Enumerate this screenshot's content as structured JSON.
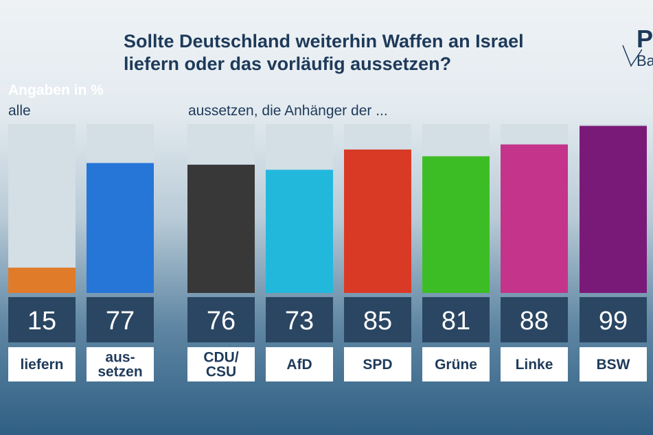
{
  "title_lines": [
    "Sollte Deutschland weiterhin Waffen an Israel",
    "liefern oder das vorläufig aussetzen?"
  ],
  "logo": {
    "top": "P",
    "bottom": "Ba"
  },
  "unit_label": "Angaben in %",
  "group_all_label": "alle",
  "group_parties_label": "aussetzen, die Anhänger der ...",
  "chart_data": {
    "type": "bar",
    "title": "Sollte Deutschland weiterhin Waffen an Israel liefern oder das vorläufig aussetzen?",
    "ylabel": "Angaben in %",
    "ylim": [
      0,
      100
    ],
    "grid": false,
    "bars": [
      {
        "group": "alle",
        "label": "liefern",
        "value": 15,
        "color": "#e07b2a"
      },
      {
        "group": "alle",
        "label": "aus-\nsetzen",
        "value": 77,
        "color": "#2676d8"
      },
      {
        "group": "aussetzen",
        "label": "CDU/\nCSU",
        "value": 76,
        "color": "#383838"
      },
      {
        "group": "aussetzen",
        "label": "AfD",
        "value": 73,
        "color": "#22b8dc"
      },
      {
        "group": "aussetzen",
        "label": "SPD",
        "value": 85,
        "color": "#d93a26"
      },
      {
        "group": "aussetzen",
        "label": "Grüne",
        "value": 81,
        "color": "#3dbd25"
      },
      {
        "group": "aussetzen",
        "label": "Linke",
        "value": 88,
        "color": "#c3348a"
      },
      {
        "group": "aussetzen",
        "label": "BSW",
        "value": 99,
        "color": "#7a1a78"
      }
    ]
  },
  "colors": {
    "track": "#d3dee5",
    "value_box": "#2a4663",
    "value_text": "#ffffff",
    "label_box": "#ffffff",
    "label_text": "#1e3a5a"
  }
}
